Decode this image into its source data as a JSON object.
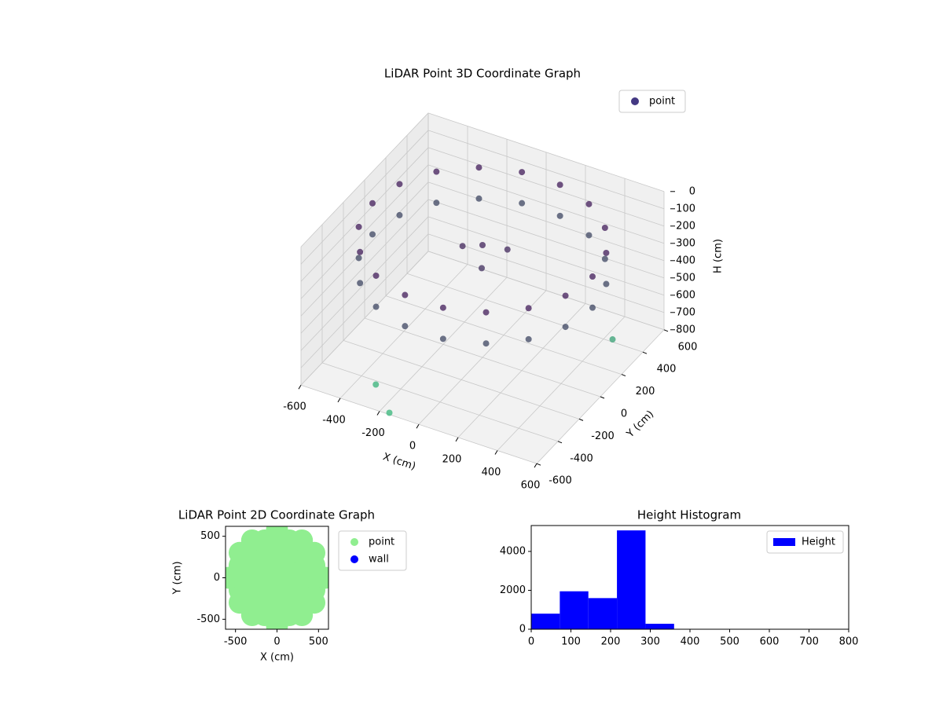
{
  "chart_data": [
    {
      "type": "scatter3d",
      "title": "LiDAR Point 3D Coordinate Graph",
      "xlabel": "X (cm)",
      "ylabel": "Y (cm)",
      "zlabel": "H (cm)",
      "series": [
        {
          "name": "point",
          "color": "#443983",
          "x": [
            560,
            560,
            526,
            526,
            429,
            429,
            280,
            280,
            97,
            97,
            -97,
            -97,
            -280,
            -280,
            -429,
            -429,
            -526,
            -526,
            -560,
            -560,
            -526,
            -526,
            -429,
            -429,
            -280,
            -280,
            -97,
            -97,
            97,
            97,
            280,
            280,
            429,
            429,
            526,
            526,
            0,
            100,
            -80,
            50,
            -300,
            500,
            -150
          ],
          "y": [
            0,
            0,
            192,
            192,
            360,
            360,
            485,
            485,
            551,
            551,
            551,
            551,
            485,
            485,
            360,
            360,
            192,
            192,
            0,
            0,
            -192,
            -192,
            -360,
            -360,
            -485,
            -485,
            -551,
            -551,
            -551,
            -551,
            -485,
            -485,
            -360,
            -360,
            -192,
            -192,
            0,
            50,
            -40,
            -100,
            -450,
            300,
            -600
          ],
          "z": [
            120,
            300,
            120,
            300,
            120,
            300,
            120,
            300,
            120,
            300,
            120,
            300,
            120,
            300,
            120,
            300,
            120,
            300,
            120,
            300,
            120,
            300,
            120,
            300,
            120,
            300,
            120,
            300,
            120,
            300,
            120,
            300,
            120,
            300,
            120,
            300,
            150,
            170,
            160,
            200,
            780,
            700,
            790
          ]
        }
      ],
      "colormap": [
        "#440154",
        "#35b779"
      ],
      "xlim": [
        -600,
        600
      ],
      "ylim": [
        -600,
        600
      ],
      "zlim": [
        0,
        800
      ],
      "xticks": [
        -600,
        -400,
        -200,
        0,
        200,
        400,
        600
      ],
      "yticks": [
        -600,
        -400,
        -200,
        0,
        200,
        400,
        600
      ],
      "zticks": [
        0,
        100,
        200,
        300,
        400,
        500,
        600,
        700,
        800
      ],
      "zinverted": true,
      "grid": true,
      "legend": "upper right"
    },
    {
      "type": "scatter",
      "title": "LiDAR Point 2D Coordinate Graph",
      "xlabel": "X (cm)",
      "ylabel": "Y (cm)",
      "series": [
        {
          "name": "point",
          "color": "#90ee90",
          "x": [
            -300,
            -150,
            0,
            150,
            300,
            -450,
            -300,
            -150,
            0,
            150,
            300,
            450,
            -450,
            -300,
            -150,
            0,
            150,
            300,
            450,
            -450,
            -300,
            -150,
            0,
            150,
            300,
            450,
            -450,
            -300,
            -150,
            0,
            150,
            300,
            450,
            -450,
            -300,
            -150,
            0,
            150,
            300,
            450,
            -300,
            -150,
            0,
            150,
            300,
            580,
            -580,
            0,
            0
          ],
          "y": [
            -450,
            -450,
            -450,
            -450,
            -450,
            -300,
            -300,
            -300,
            -300,
            -300,
            -300,
            -300,
            -150,
            -150,
            -150,
            -150,
            -150,
            -150,
            -150,
            0,
            0,
            0,
            0,
            0,
            0,
            0,
            150,
            150,
            150,
            150,
            150,
            150,
            150,
            300,
            300,
            300,
            300,
            300,
            300,
            300,
            450,
            450,
            450,
            450,
            450,
            0,
            0,
            580,
            -580
          ]
        },
        {
          "name": "wall",
          "color": "#0000ff",
          "x": [],
          "y": []
        }
      ],
      "xlim": [
        -620,
        620
      ],
      "ylim": [
        -620,
        620
      ],
      "xticks": [
        -500,
        0,
        500
      ],
      "yticks": [
        -500,
        0,
        500
      ],
      "legend": "outside right"
    },
    {
      "type": "histogram",
      "title": "Height Histogram",
      "series": [
        {
          "name": "Height",
          "color": "#0000ff",
          "bins": [
            0,
            72,
            144,
            216,
            288,
            360,
            432,
            504,
            576,
            648,
            720
          ],
          "counts": [
            800,
            1950,
            1600,
            5080,
            280,
            0,
            0,
            0,
            0,
            10
          ]
        }
      ],
      "xlim": [
        0,
        800
      ],
      "ylim": [
        0,
        5330
      ],
      "xticks": [
        0,
        100,
        200,
        300,
        400,
        500,
        600,
        700,
        800
      ],
      "yticks": [
        0,
        2000,
        4000
      ],
      "legend": "upper right"
    }
  ]
}
